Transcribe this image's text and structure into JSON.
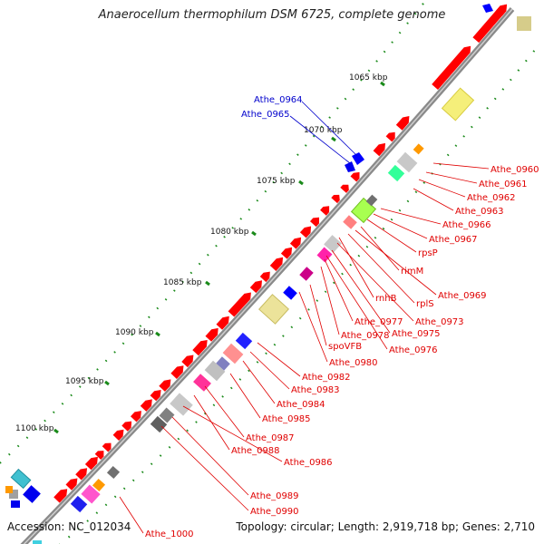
{
  "title": "Anaerocellum thermophilum DSM 6725, complete genome",
  "accession": "Accession: NC_012034",
  "summary": "Topology: circular; Length: 2,919,718 bp; Genes: 2,710",
  "scale_labels": [
    "1065 kbp",
    "1070 kbp",
    "1075 kbp",
    "1080 kbp",
    "1085 kbp",
    "1090 kbp",
    "1095 kbp",
    "1100 kbp"
  ],
  "blue_gene_labels": [
    "Athe_0964",
    "Athe_0965"
  ],
  "red_gene_labels": [
    "Athe_0960",
    "Athe_0961",
    "Athe_0962",
    "Athe_0963",
    "Athe_0966",
    "Athe_0967",
    "rpsP",
    "rimM",
    "Athe_0969",
    "rnhB",
    "rplS",
    "Athe_0973",
    "Athe_0977",
    "Athe_0975",
    "Athe_0978",
    "Athe_0976",
    "spoVFB",
    "Athe_0980",
    "Athe_0982",
    "Athe_0983",
    "Athe_0984",
    "Athe_0985",
    "Athe_0987",
    "Athe_0988",
    "Athe_0986",
    "Athe_0989",
    "Athe_0990",
    "Athe_1000"
  ],
  "colors": {
    "backbone": "#8a8a8a",
    "forward_gene": "#ff0000",
    "label_red": "#e00000",
    "label_blue": "#0000cc",
    "tick": "#1a8a1a",
    "yellow": "#f5ef7a",
    "khaki": "#e8e0a0",
    "gray": "#b0b0b0",
    "darkgray": "#707070",
    "pink": "#ff66aa",
    "magenta": "#ff22aa",
    "salmon": "#ff8080",
    "blue": "#0000ff",
    "lime": "#a0ff40",
    "mint": "#33ff99",
    "orange": "#ff9900",
    "cyan": "#40c0d0"
  }
}
